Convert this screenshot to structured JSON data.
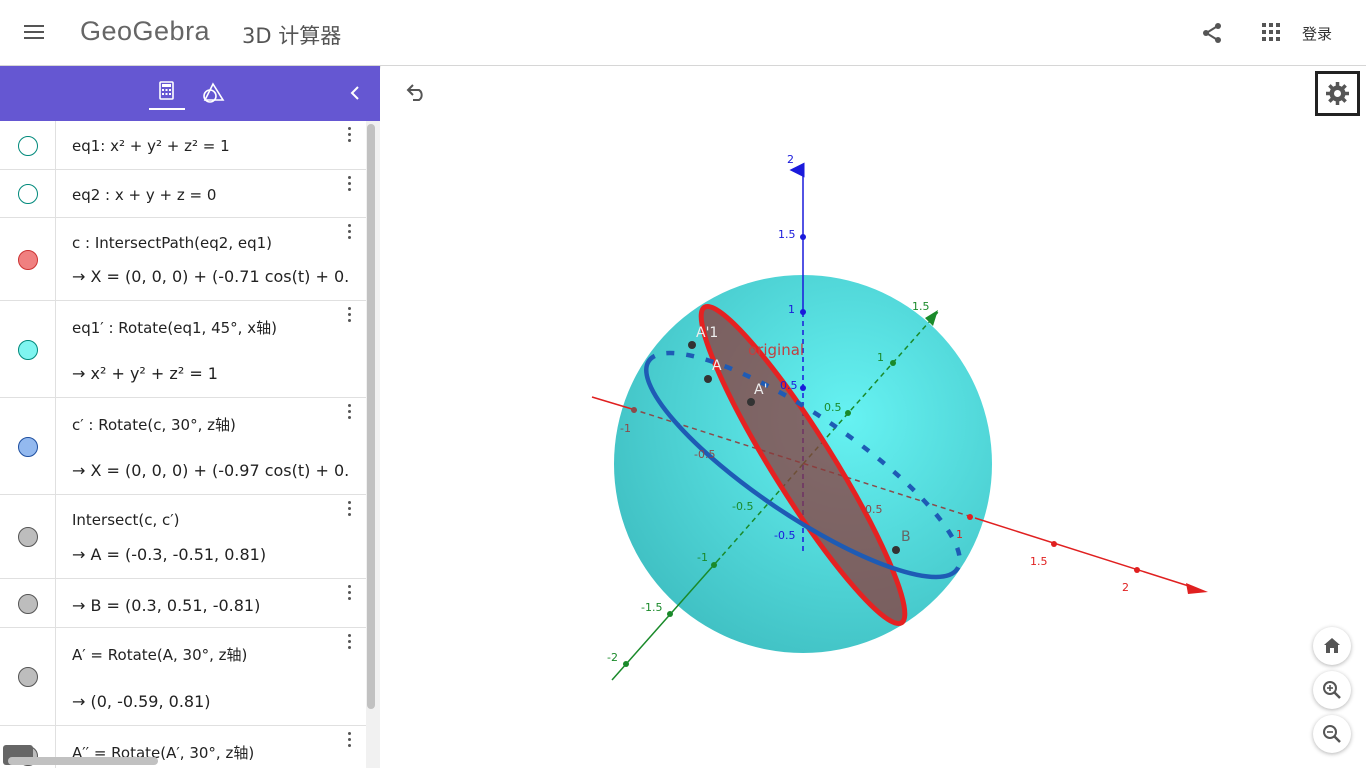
{
  "header": {
    "logo_text": "GeoGebra",
    "app_title": "3D 计算器",
    "login_label": "登录"
  },
  "algebra": {
    "rows": [
      {
        "line1": "eq1: x² + y² + z² = 1",
        "line2": "",
        "color": "#ffffff",
        "border": "#00897b"
      },
      {
        "line1": "eq2 : x + y + z = 0",
        "line2": "",
        "color": "#ffffff",
        "border": "#00897b"
      },
      {
        "line1": "c : IntersectPath(eq2, eq1)",
        "line2": "→  X = (0, 0, 0) + (-0.71 cos(t) + 0.",
        "color": "#f08080",
        "border": "#cc3333"
      },
      {
        "line1": "eq1′ : Rotate(eq1, 45°, x轴)",
        "line2": "→  x² + y² + z² = 1",
        "color": "#7ff5f0",
        "border": "#00897b"
      },
      {
        "line1": "c′ : Rotate(c, 30°, z轴)",
        "line2": "→  X = (0, 0, 0) + (-0.97 cos(t) + 0.",
        "color": "#93b9ef",
        "border": "#1e4fa0"
      },
      {
        "line1": "Intersect(c, c′)",
        "line2": "→  A = (-0.3, -0.51, 0.81)",
        "color": "#bdbdbd",
        "border": "#555555"
      },
      {
        "line1": "",
        "line2": "→  B = (0.3, 0.51, -0.81)",
        "color": "#bdbdbd",
        "border": "#555555"
      },
      {
        "line1": "A′ = Rotate(A, 30°, z轴)",
        "line2": "→  (0, -0.59, 0.81)",
        "color": "#bdbdbd",
        "border": "#555555"
      },
      {
        "line1": "A′′ = Rotate(A′, 30°, z轴)",
        "line2": "",
        "color": "#bdbdbd",
        "border": "#555555"
      }
    ]
  },
  "graphics": {
    "labels": {
      "point_a_double_prime": "A'1",
      "point_a": "A",
      "point_a_prime": "A'",
      "point_b": "B",
      "original_text": "original"
    },
    "z_ticks": [
      "2",
      "1.5",
      "1",
      "0.5",
      "-0.5"
    ],
    "y_ticks": [
      "1.5",
      "1",
      "0.5",
      "-0.5",
      "-1",
      "-1.5",
      "-2"
    ],
    "x_ticks": [
      "-1",
      "-0.5",
      "0.5",
      "1",
      "1.5",
      "2"
    ],
    "colors": {
      "sphere": "#4fd6d8",
      "x_axis": "#e02020",
      "y_axis": "#1a8a2a",
      "z_axis": "#1a1adb",
      "circle_c": "#e52222",
      "circle_c_prime": "#1e5bb5",
      "disc": "#8b3b3b",
      "panel_header": "#6557d2"
    }
  }
}
